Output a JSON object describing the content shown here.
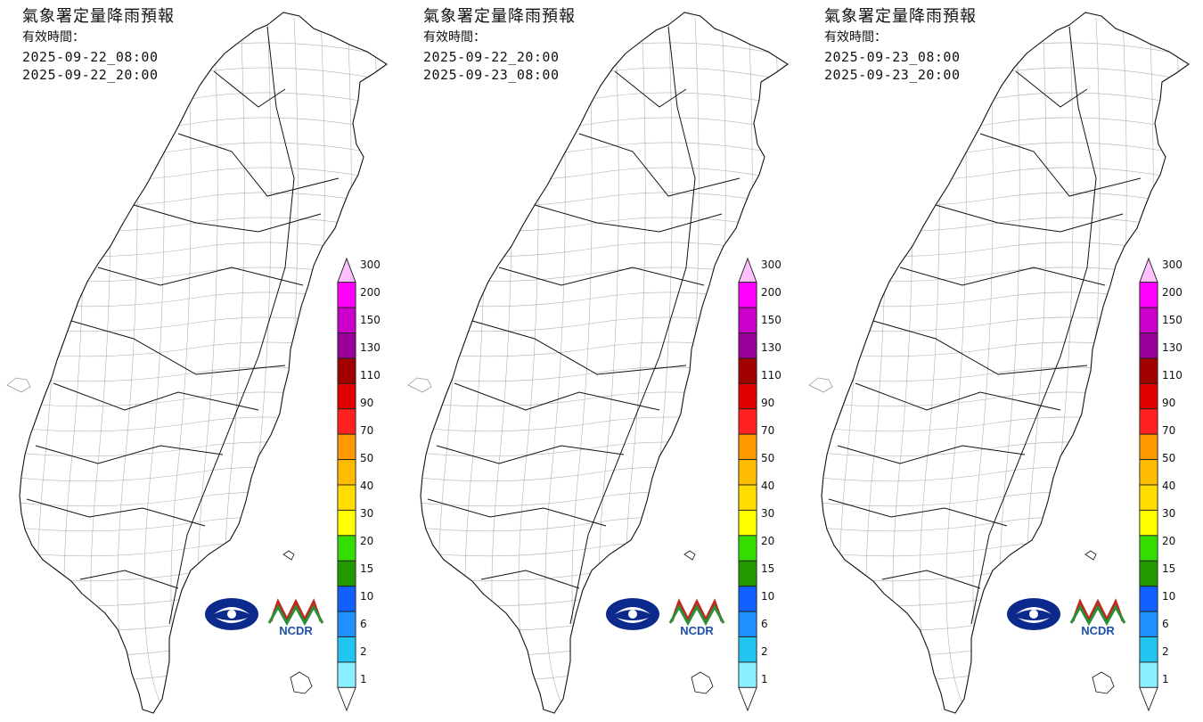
{
  "panels": [
    {
      "title": "氣象署定量降雨預報",
      "valid_label": "有效時間：",
      "start": "2025-09-22_08:00",
      "end": "2025-09-22_20:00",
      "intensity": "medium"
    },
    {
      "title": "氣象署定量降雨預報",
      "valid_label": "有效時間：",
      "start": "2025-09-22_20:00",
      "end": "2025-09-23_08:00",
      "intensity": "high"
    },
    {
      "title": "氣象署定量降雨預報",
      "valid_label": "有效時間：",
      "start": "2025-09-23_08:00",
      "end": "2025-09-23_20:00",
      "intensity": "spread"
    }
  ],
  "legend": {
    "levels": [
      "300",
      "200",
      "150",
      "130",
      "110",
      "90",
      "70",
      "50",
      "40",
      "30",
      "20",
      "15",
      "10",
      "6",
      "2",
      "1"
    ],
    "colors": [
      "#ff00ff",
      "#cc00cc",
      "#990099",
      "#a00000",
      "#e00000",
      "#ff2020",
      "#ff9900",
      "#ffbb00",
      "#ffdd00",
      "#ffff00",
      "#33dd00",
      "#229900",
      "#1060ff",
      "#1e90ff",
      "#22c4f0",
      "#88f0ff",
      "#ffffff"
    ],
    "top_color": "#ffc0ff"
  },
  "logos": {
    "cwa_icon": "cwa-logo-icon",
    "ncdr_text": "NCDR"
  },
  "colors": {
    "county_border": "#111111",
    "township_border": "#b0b0b0"
  }
}
